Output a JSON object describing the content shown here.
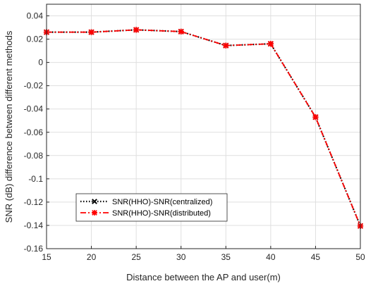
{
  "chart_data": {
    "type": "line",
    "xlabel": "Distance between the AP and user(m)",
    "ylabel": "SNR (dB) difference between different methods",
    "xlim": [
      15,
      50
    ],
    "ylim": [
      -0.16,
      0.05
    ],
    "x_ticks": [
      "15",
      "20",
      "25",
      "30",
      "35",
      "40",
      "45",
      "50"
    ],
    "y_ticks": [
      "0.04",
      "0.02",
      "0",
      "-0.02",
      "-0.04",
      "-0.06",
      "-0.08",
      "-0.1",
      "-0.12",
      "-0.14",
      "-0.16"
    ],
    "grid": true,
    "legend_position": "lower-left",
    "x": [
      15,
      20,
      25,
      30,
      35,
      40,
      45,
      50
    ],
    "series": [
      {
        "name": "SNR(HHO)-SNR(centralized)",
        "values": [
          0.026,
          0.026,
          0.028,
          0.0265,
          0.0145,
          0.016,
          -0.047,
          -0.1405
        ],
        "color": "#000000",
        "line_style": "dotted",
        "marker": "x"
      },
      {
        "name": "SNR(HHO)-SNR(distributed)",
        "values": [
          0.026,
          0.026,
          0.028,
          0.0265,
          0.0145,
          0.016,
          -0.047,
          -0.1405
        ],
        "color": "#ff0000",
        "line_style": "dashdot",
        "marker": "asterisk"
      }
    ]
  }
}
